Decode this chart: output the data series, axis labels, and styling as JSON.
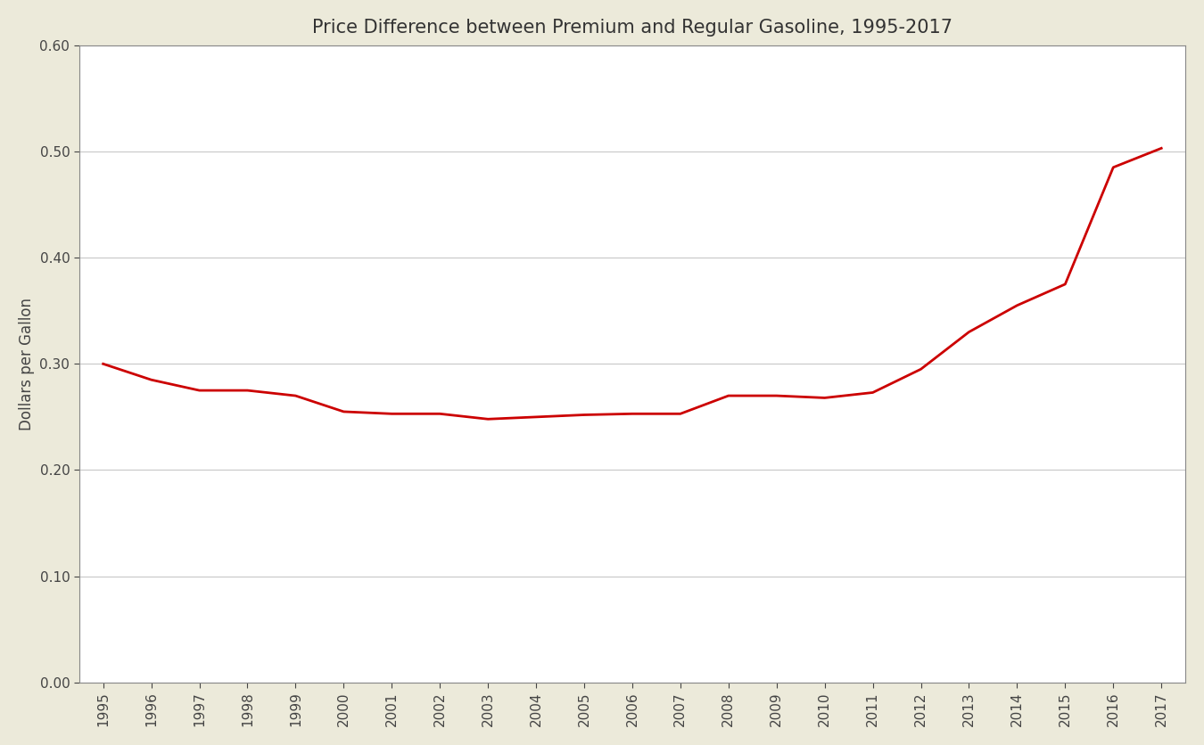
{
  "title": "Price Difference between Premium and Regular Gasoline, 1995-2017",
  "ylabel": "Dollars per Gallon",
  "background_color": "#eceada",
  "plot_background": "#ffffff",
  "line_color": "#cc0000",
  "line_width": 2.0,
  "years": [
    1995,
    1996,
    1997,
    1998,
    1999,
    2000,
    2001,
    2002,
    2003,
    2004,
    2005,
    2006,
    2007,
    2008,
    2009,
    2010,
    2011,
    2012,
    2013,
    2014,
    2015,
    2016,
    2017
  ],
  "values": [
    0.3,
    0.285,
    0.275,
    0.275,
    0.27,
    0.255,
    0.253,
    0.253,
    0.248,
    0.25,
    0.252,
    0.253,
    0.253,
    0.27,
    0.27,
    0.268,
    0.273,
    0.295,
    0.33,
    0.355,
    0.375,
    0.485,
    0.503
  ],
  "ylim": [
    0.0,
    0.6
  ],
  "yticks": [
    0.0,
    0.1,
    0.2,
    0.3,
    0.4,
    0.5,
    0.6
  ],
  "grid_color": "#c8c8c8",
  "spine_color": "#888888",
  "title_fontsize": 15,
  "label_fontsize": 12,
  "tick_fontsize": 11
}
